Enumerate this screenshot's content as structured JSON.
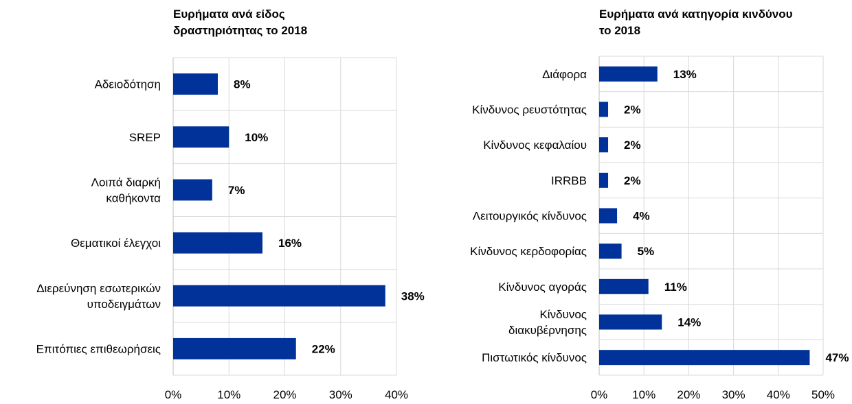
{
  "chart_data": [
    {
      "type": "bar",
      "orientation": "horizontal",
      "title": "Ευρήματα ανά είδος\nδραστηριότητας το 2018",
      "categories": [
        "Αδειοδότηση",
        "SREP",
        "Λοιπά διαρκή\nκαθήκοντα",
        "Θεματικοί έλεγχοι",
        "Διερεύνηση εσωτερικών\nυποδειγμάτων",
        "Επιτόπιες επιθεωρήσεις"
      ],
      "values": [
        8,
        10,
        7,
        16,
        38,
        22
      ],
      "value_labels": [
        "8%",
        "10%",
        "7%",
        "16%",
        "38%",
        "22%"
      ],
      "xlim": [
        0,
        40
      ],
      "ticks": [
        0,
        10,
        20,
        30,
        40
      ],
      "tick_labels": [
        "0%",
        "10%",
        "20%",
        "30%",
        "40%"
      ],
      "bar_color": "#003299",
      "grid": true
    },
    {
      "type": "bar",
      "orientation": "horizontal",
      "title": "Ευρήματα ανά κατηγορία κινδύνου\nτο 2018",
      "categories": [
        "Διάφορα",
        "Κίνδυνος ρευστότητας",
        "Κίνδυνος κεφαλαίου",
        "IRRBB",
        "Λειτουργικός κίνδυνος",
        "Κίνδυνος κερδοφορίας",
        "Κίνδυνος αγοράς",
        "Κίνδυνος\nδιακυβέρνησης",
        "Πιστωτικός κίνδυνος"
      ],
      "values": [
        13,
        2,
        2,
        2,
        4,
        5,
        11,
        14,
        47
      ],
      "value_labels": [
        "13%",
        "2%",
        "2%",
        "2%",
        "4%",
        "5%",
        "11%",
        "14%",
        "47%"
      ],
      "xlim": [
        0,
        50
      ],
      "ticks": [
        0,
        10,
        20,
        30,
        40,
        50
      ],
      "tick_labels": [
        "0%",
        "10%",
        "20%",
        "30%",
        "40%",
        "50%"
      ],
      "bar_color": "#003299",
      "grid": true
    }
  ]
}
